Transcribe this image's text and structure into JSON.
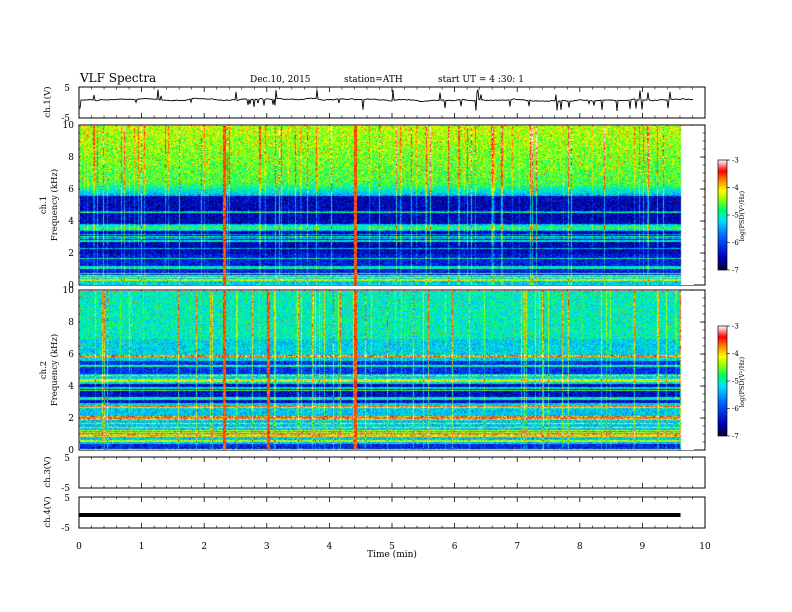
{
  "header": {
    "title": "VLF  Spectra",
    "date": "Dec.10, 2015",
    "station": "station=ATH",
    "start_ut": "start  UT  =   4  :30: 1"
  },
  "chart_data": [
    {
      "type": "line",
      "panel": "ch1-waveform",
      "ylabel": "ch.1(V)",
      "ylim": [
        -5,
        5
      ],
      "yticks": [
        "5",
        "-5"
      ],
      "xlim": [
        0,
        10
      ],
      "baseline_v": 0.8,
      "trace_color": "#000000"
    },
    {
      "type": "heatmap",
      "panel": "ch1-spectrogram",
      "ylabel_channel": "ch.1",
      "ylabel": "Frequency (kHz)",
      "ylim": [
        0,
        10
      ],
      "yticks": [
        "0",
        "2",
        "4",
        "6",
        "8",
        "10"
      ],
      "xlim": [
        0,
        9.8
      ],
      "colorbar": {
        "label": "log(PSD(V²/Hz)",
        "ticks": [
          "-3",
          "-4",
          "-5",
          "-6",
          "-7"
        ],
        "range": [
          -7,
          -3
        ]
      },
      "hot_times_min": [
        2.3,
        4.4
      ],
      "hot_time_color": "#ff2a00"
    },
    {
      "type": "heatmap",
      "panel": "ch2-spectrogram",
      "ylabel_channel": "ch.2",
      "ylabel": "Frequency (kHz)",
      "ylim": [
        0,
        10
      ],
      "yticks": [
        "0",
        "2",
        "4",
        "6",
        "8",
        "10"
      ],
      "xlim": [
        0,
        9.8
      ],
      "colorbar": {
        "label": "log(PSD(V²/Hz)",
        "ticks": [
          "-3",
          "-4",
          "-5",
          "-6",
          "-7"
        ],
        "range": [
          -7,
          -3
        ]
      },
      "hot_times_min": [
        2.3,
        3.0,
        4.4
      ],
      "hot_time_color": "#ff2a00"
    },
    {
      "type": "line",
      "panel": "ch3-waveform",
      "ylabel": "ch.3(V)",
      "ylim": [
        -5,
        5
      ],
      "yticks": [
        "5",
        "-5"
      ],
      "empty": true
    },
    {
      "type": "line",
      "panel": "ch4-waveform",
      "ylabel": "ch.4(V)",
      "ylim": [
        -5,
        5
      ],
      "yticks": [
        "5",
        "-5"
      ],
      "xlim": [
        0,
        9.8
      ],
      "flat_value_v": -0.8,
      "trace_color": "#000000"
    }
  ],
  "xaxis": {
    "label": "Time  (min)",
    "ticks": [
      "0",
      "1",
      "2",
      "3",
      "4",
      "5",
      "6",
      "7",
      "8",
      "9",
      "10"
    ],
    "range": [
      0,
      10
    ]
  }
}
